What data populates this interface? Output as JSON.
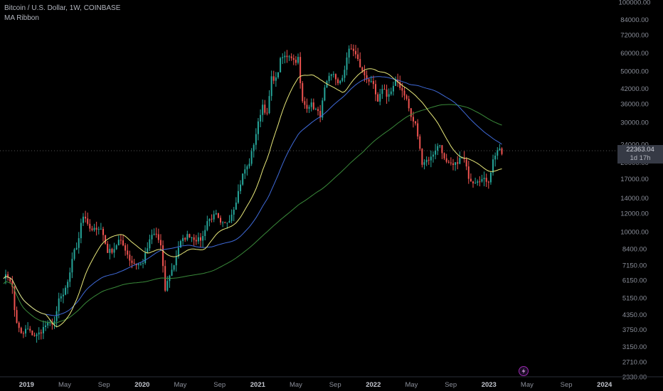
{
  "legend": {
    "symbol": "Bitcoin / U.S. Dollar, 1W, COINBASE",
    "indicator": "MA Ribbon"
  },
  "last_price_tag": {
    "price": "22363.04",
    "countdown": "1d 17h"
  },
  "colors": {
    "background": "#000000",
    "up_candle": "#26a69a",
    "down_candle": "#ef5350",
    "ma_fast": "#e8e87a",
    "ma_mid": "#3f6ad8",
    "ma_slow": "#3a8a3a",
    "axis_text": "#8a8e99",
    "price_tag_bg": "#363a45"
  },
  "chart_data": {
    "type": "candlestick",
    "title": "Bitcoin / U.S. Dollar, 1W, COINBASE",
    "y_scale": "log",
    "ylim": [
      2330,
      100000
    ],
    "y_ticks": [
      "100000.00",
      "84000.00",
      "72000.00",
      "60000.00",
      "50000.00",
      "42000.00",
      "36000.00",
      "30000.00",
      "24000.00",
      "20000.00",
      "17000.00",
      "14000.00",
      "12000.00",
      "10000.00",
      "8400.00",
      "7150.00",
      "6150.00",
      "5150.00",
      "4350.00",
      "3750.00",
      "3150.00",
      "2710.00",
      "2330.00"
    ],
    "x_ticks": [
      {
        "label": "2019",
        "t": 2019.0,
        "bold": true
      },
      {
        "label": "May",
        "t": 2019.33,
        "bold": false
      },
      {
        "label": "Sep",
        "t": 2019.67,
        "bold": false
      },
      {
        "label": "2020",
        "t": 2020.0,
        "bold": true
      },
      {
        "label": "May",
        "t": 2020.33,
        "bold": false
      },
      {
        "label": "Sep",
        "t": 2020.67,
        "bold": false
      },
      {
        "label": "2021",
        "t": 2021.0,
        "bold": true
      },
      {
        "label": "May",
        "t": 2021.33,
        "bold": false
      },
      {
        "label": "Sep",
        "t": 2021.67,
        "bold": false
      },
      {
        "label": "2022",
        "t": 2022.0,
        "bold": true
      },
      {
        "label": "May",
        "t": 2022.33,
        "bold": false
      },
      {
        "label": "Sep",
        "t": 2022.67,
        "bold": false
      },
      {
        "label": "2023",
        "t": 2023.0,
        "bold": true
      },
      {
        "label": "May",
        "t": 2023.33,
        "bold": false
      },
      {
        "label": "Sep",
        "t": 2023.67,
        "bold": false
      },
      {
        "label": "2024",
        "t": 2024.0,
        "bold": true
      }
    ],
    "close_series": [
      [
        2018.8,
        6400
      ],
      [
        2018.85,
        6350
      ],
      [
        2018.88,
        5600
      ],
      [
        2018.9,
        4300
      ],
      [
        2018.93,
        3800
      ],
      [
        2018.96,
        3500
      ],
      [
        2019.0,
        3800
      ],
      [
        2019.04,
        3600
      ],
      [
        2019.08,
        3500
      ],
      [
        2019.12,
        3650
      ],
      [
        2019.16,
        3900
      ],
      [
        2019.2,
        3950
      ],
      [
        2019.25,
        4100
      ],
      [
        2019.28,
        5100
      ],
      [
        2019.32,
        5300
      ],
      [
        2019.36,
        6000
      ],
      [
        2019.4,
        8000
      ],
      [
        2019.44,
        8700
      ],
      [
        2019.47,
        11000
      ],
      [
        2019.5,
        12000
      ],
      [
        2019.53,
        10500
      ],
      [
        2019.57,
        10000
      ],
      [
        2019.61,
        10500
      ],
      [
        2019.65,
        10200
      ],
      [
        2019.7,
        8200
      ],
      [
        2019.75,
        8300
      ],
      [
        2019.8,
        9200
      ],
      [
        2019.85,
        8500
      ],
      [
        2019.9,
        7400
      ],
      [
        2019.95,
        7200
      ],
      [
        2020.0,
        7200
      ],
      [
        2020.04,
        8300
      ],
      [
        2020.08,
        9600
      ],
      [
        2020.12,
        9800
      ],
      [
        2020.16,
        8700
      ],
      [
        2020.2,
        5500
      ],
      [
        2020.23,
        6400
      ],
      [
        2020.27,
        7000
      ],
      [
        2020.32,
        8800
      ],
      [
        2020.36,
        9300
      ],
      [
        2020.4,
        9700
      ],
      [
        2020.44,
        9400
      ],
      [
        2020.48,
        9200
      ],
      [
        2020.52,
        9300
      ],
      [
        2020.56,
        11100
      ],
      [
        2020.6,
        11500
      ],
      [
        2020.64,
        11800
      ],
      [
        2020.68,
        10700
      ],
      [
        2020.72,
        10800
      ],
      [
        2020.76,
        11500
      ],
      [
        2020.8,
        13000
      ],
      [
        2020.84,
        15500
      ],
      [
        2020.88,
        18500
      ],
      [
        2020.92,
        19300
      ],
      [
        2020.96,
        23500
      ],
      [
        2021.0,
        29000
      ],
      [
        2021.04,
        36000
      ],
      [
        2021.08,
        32000
      ],
      [
        2021.12,
        47000
      ],
      [
        2021.16,
        46000
      ],
      [
        2021.2,
        57000
      ],
      [
        2021.24,
        58000
      ],
      [
        2021.28,
        59000
      ],
      [
        2021.32,
        55000
      ],
      [
        2021.35,
        57000
      ],
      [
        2021.38,
        37000
      ],
      [
        2021.42,
        35000
      ],
      [
        2021.46,
        36000
      ],
      [
        2021.5,
        34000
      ],
      [
        2021.54,
        32000
      ],
      [
        2021.58,
        42000
      ],
      [
        2021.62,
        47000
      ],
      [
        2021.66,
        49000
      ],
      [
        2021.7,
        43000
      ],
      [
        2021.74,
        48000
      ],
      [
        2021.78,
        61000
      ],
      [
        2021.82,
        63000
      ],
      [
        2021.86,
        57000
      ],
      [
        2021.9,
        50000
      ],
      [
        2021.94,
        47000
      ],
      [
        2022.0,
        43000
      ],
      [
        2022.04,
        36000
      ],
      [
        2022.08,
        43000
      ],
      [
        2022.12,
        39000
      ],
      [
        2022.16,
        41000
      ],
      [
        2022.2,
        46000
      ],
      [
        2022.24,
        42000
      ],
      [
        2022.28,
        39000
      ],
      [
        2022.33,
        31000
      ],
      [
        2022.37,
        29000
      ],
      [
        2022.42,
        20000
      ],
      [
        2022.46,
        20500
      ],
      [
        2022.5,
        21000
      ],
      [
        2022.54,
        23000
      ],
      [
        2022.58,
        24000
      ],
      [
        2022.62,
        20000
      ],
      [
        2022.66,
        19500
      ],
      [
        2022.7,
        19300
      ],
      [
        2022.74,
        20600
      ],
      [
        2022.78,
        21000
      ],
      [
        2022.83,
        17000
      ],
      [
        2022.87,
        16500
      ],
      [
        2022.91,
        17000
      ],
      [
        2022.95,
        16800
      ],
      [
        2023.0,
        16700
      ],
      [
        2023.04,
        21000
      ],
      [
        2023.08,
        23000
      ],
      [
        2023.11,
        21800
      ],
      [
        2023.13,
        22363.04
      ]
    ]
  }
}
